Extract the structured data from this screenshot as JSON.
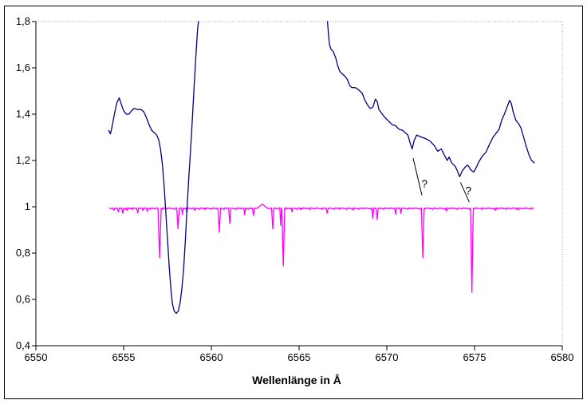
{
  "figure": {
    "background_color": "#ffffff",
    "border_color": "#000000",
    "plot_border_color": "#999999"
  },
  "chart_data": {
    "type": "line",
    "title": "",
    "xlabel": "Wellenlänge in Å",
    "ylabel": "",
    "xlim": [
      6550,
      6580
    ],
    "ylim": [
      0.4,
      1.8
    ],
    "grid": false,
    "legend": null,
    "x_ticks": [
      6550,
      6555,
      6560,
      6565,
      6570,
      6575,
      6580
    ],
    "x_tick_labels": [
      "6550",
      "6555",
      "6560",
      "6565",
      "6570",
      "6575",
      "6580"
    ],
    "y_ticks": [
      0.4,
      0.6,
      0.8,
      1,
      1.2,
      1.4,
      1.6,
      1.8
    ],
    "y_tick_labels": [
      "0,4",
      "0,6",
      "0,8",
      "1",
      "1,2",
      "1,4",
      "1,6",
      "1,8"
    ],
    "series": [
      {
        "name": "observed_halpha_spectrum",
        "color": "#000080",
        "off_scale_above": 1.8,
        "segments": [
          [
            [
              6554.15,
              1.33
            ],
            [
              6554.25,
              1.315
            ],
            [
              6554.35,
              1.35
            ],
            [
              6554.5,
              1.41
            ],
            [
              6554.62,
              1.45
            ],
            [
              6554.75,
              1.47
            ],
            [
              6554.88,
              1.44
            ],
            [
              6555.0,
              1.415
            ],
            [
              6555.15,
              1.4
            ],
            [
              6555.3,
              1.4
            ],
            [
              6555.45,
              1.415
            ],
            [
              6555.6,
              1.425
            ],
            [
              6555.8,
              1.42
            ],
            [
              6556.0,
              1.42
            ],
            [
              6556.15,
              1.41
            ],
            [
              6556.3,
              1.385
            ],
            [
              6556.45,
              1.355
            ],
            [
              6556.6,
              1.33
            ],
            [
              6556.75,
              1.32
            ],
            [
              6556.88,
              1.31
            ],
            [
              6557.0,
              1.29
            ],
            [
              6557.1,
              1.25
            ],
            [
              6557.2,
              1.19
            ],
            [
              6557.3,
              1.1
            ],
            [
              6557.4,
              0.98
            ],
            [
              6557.5,
              0.86
            ],
            [
              6557.6,
              0.74
            ],
            [
              6557.7,
              0.64
            ],
            [
              6557.78,
              0.58
            ],
            [
              6557.88,
              0.55
            ],
            [
              6558.0,
              0.54
            ],
            [
              6558.12,
              0.55
            ],
            [
              6558.22,
              0.585
            ],
            [
              6558.32,
              0.645
            ],
            [
              6558.42,
              0.73
            ],
            [
              6558.52,
              0.855
            ],
            [
              6558.62,
              1.0
            ],
            [
              6558.72,
              1.13
            ],
            [
              6558.82,
              1.25
            ],
            [
              6558.92,
              1.38
            ],
            [
              6559.02,
              1.52
            ],
            [
              6559.12,
              1.65
            ],
            [
              6559.22,
              1.77
            ],
            [
              6559.27,
              1.8
            ]
          ],
          [
            [
              6566.62,
              1.8
            ],
            [
              6566.68,
              1.74
            ],
            [
              6566.73,
              1.7
            ],
            [
              6566.82,
              1.68
            ],
            [
              6566.95,
              1.67
            ],
            [
              6567.1,
              1.64
            ],
            [
              6567.2,
              1.61
            ],
            [
              6567.32,
              1.585
            ],
            [
              6567.45,
              1.575
            ],
            [
              6567.6,
              1.565
            ],
            [
              6567.75,
              1.55
            ],
            [
              6567.88,
              1.525
            ],
            [
              6568.0,
              1.515
            ],
            [
              6568.2,
              1.515
            ],
            [
              6568.4,
              1.505
            ],
            [
              6568.6,
              1.49
            ],
            [
              6568.75,
              1.46
            ],
            [
              6568.9,
              1.44
            ],
            [
              6569.05,
              1.425
            ],
            [
              6569.2,
              1.43
            ],
            [
              6569.35,
              1.465
            ],
            [
              6569.45,
              1.455
            ],
            [
              6569.55,
              1.42
            ],
            [
              6569.7,
              1.405
            ],
            [
              6569.9,
              1.385
            ],
            [
              6570.1,
              1.37
            ],
            [
              6570.3,
              1.355
            ],
            [
              6570.5,
              1.35
            ],
            [
              6570.7,
              1.335
            ],
            [
              6570.9,
              1.33
            ],
            [
              6571.05,
              1.32
            ],
            [
              6571.2,
              1.31
            ],
            [
              6571.35,
              1.27
            ],
            [
              6571.45,
              1.25
            ],
            [
              6571.55,
              1.285
            ],
            [
              6571.7,
              1.31
            ],
            [
              6571.85,
              1.305
            ],
            [
              6572.0,
              1.3
            ],
            [
              6572.2,
              1.295
            ],
            [
              6572.45,
              1.285
            ],
            [
              6572.7,
              1.265
            ],
            [
              6572.9,
              1.24
            ],
            [
              6573.1,
              1.25
            ],
            [
              6573.3,
              1.22
            ],
            [
              6573.45,
              1.2
            ],
            [
              6573.55,
              1.215
            ],
            [
              6573.7,
              1.19
            ],
            [
              6573.9,
              1.175
            ],
            [
              6574.05,
              1.15
            ],
            [
              6574.15,
              1.13
            ],
            [
              6574.3,
              1.155
            ],
            [
              6574.5,
              1.175
            ],
            [
              6574.62,
              1.18
            ],
            [
              6574.78,
              1.16
            ],
            [
              6574.95,
              1.15
            ],
            [
              6575.1,
              1.17
            ],
            [
              6575.25,
              1.195
            ],
            [
              6575.45,
              1.22
            ],
            [
              6575.65,
              1.235
            ],
            [
              6575.85,
              1.27
            ],
            [
              6576.05,
              1.3
            ],
            [
              6576.25,
              1.32
            ],
            [
              6576.4,
              1.335
            ],
            [
              6576.55,
              1.375
            ],
            [
              6576.7,
              1.4
            ],
            [
              6576.85,
              1.43
            ],
            [
              6577.0,
              1.46
            ],
            [
              6577.1,
              1.445
            ],
            [
              6577.2,
              1.41
            ],
            [
              6577.35,
              1.375
            ],
            [
              6577.5,
              1.36
            ],
            [
              6577.65,
              1.34
            ],
            [
              6577.8,
              1.3
            ],
            [
              6577.95,
              1.26
            ],
            [
              6578.1,
              1.225
            ],
            [
              6578.25,
              1.2
            ],
            [
              6578.4,
              1.19
            ]
          ]
        ]
      },
      {
        "name": "reference_spectrum",
        "color": "#FF00FF",
        "range": [
          6554.2,
          6578.35
        ],
        "baseline": 0.995,
        "noise_amplitude": 0.008,
        "dips": [
          [
            6554.45,
            0.985,
            0.1
          ],
          [
            6554.7,
            0.978,
            0.12
          ],
          [
            6554.95,
            0.972,
            0.12
          ],
          [
            6555.2,
            0.984,
            0.1
          ],
          [
            6555.5,
            0.988,
            0.1
          ],
          [
            6555.8,
            0.974,
            0.12
          ],
          [
            6556.1,
            0.984,
            0.1
          ],
          [
            6556.35,
            0.98,
            0.1
          ],
          [
            6557.05,
            0.78,
            0.18
          ],
          [
            6558.1,
            0.905,
            0.15
          ],
          [
            6558.35,
            0.968,
            0.1
          ],
          [
            6558.6,
            0.975,
            0.1
          ],
          [
            6559.05,
            0.985,
            0.1
          ],
          [
            6559.65,
            0.988,
            0.1
          ],
          [
            6560.45,
            0.89,
            0.15
          ],
          [
            6561.05,
            0.928,
            0.13
          ],
          [
            6561.9,
            0.965,
            0.1
          ],
          [
            6562.4,
            0.962,
            0.12
          ],
          [
            6562.9,
            1.012,
            0.55
          ],
          [
            6563.5,
            0.905,
            0.14
          ],
          [
            6563.95,
            0.92,
            0.1
          ],
          [
            6564.1,
            0.745,
            0.16
          ],
          [
            6564.6,
            0.978,
            0.1
          ],
          [
            6565.1,
            0.988,
            0.1
          ],
          [
            6565.6,
            0.988,
            0.1
          ],
          [
            6566.6,
            0.972,
            0.12
          ],
          [
            6567.3,
            0.988,
            0.1
          ],
          [
            6568.1,
            0.986,
            0.1
          ],
          [
            6569.2,
            0.95,
            0.12
          ],
          [
            6569.45,
            0.945,
            0.12
          ],
          [
            6570.5,
            0.968,
            0.1
          ],
          [
            6570.8,
            0.972,
            0.1
          ],
          [
            6572.05,
            0.78,
            0.16
          ],
          [
            6573.4,
            0.982,
            0.1
          ],
          [
            6574.85,
            0.63,
            0.16
          ],
          [
            6576.2,
            0.985,
            0.1
          ],
          [
            6577.4,
            0.988,
            0.1
          ]
        ]
      }
    ],
    "annotations": [
      {
        "text": "?",
        "x": 6572.15,
        "y": 1.1,
        "line": [
          6571.5,
          1.21,
          6572.0,
          1.05
        ]
      },
      {
        "text": "?",
        "x": 6574.65,
        "y": 1.07,
        "line": [
          6574.2,
          1.105,
          6574.7,
          1.02
        ]
      }
    ]
  }
}
